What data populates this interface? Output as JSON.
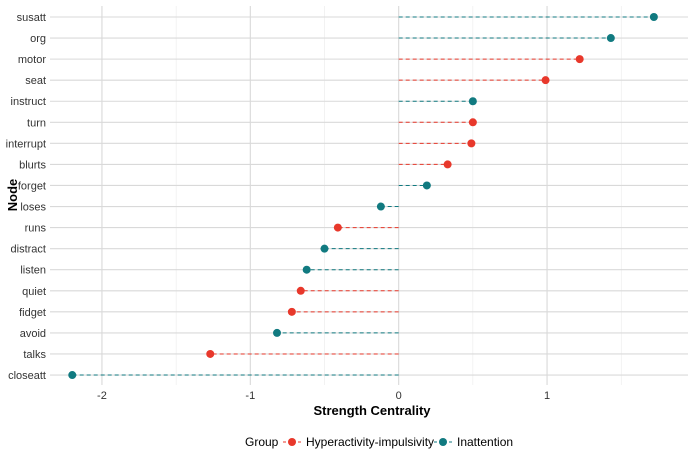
{
  "chart_data": {
    "type": "lollipop",
    "xlabel": "Strength Centrality",
    "ylabel": "Node",
    "xlim": [
      -2.35,
      1.95
    ],
    "x_ticks": [
      -2,
      -1,
      0,
      1
    ],
    "x_tick_labels": [
      "-2",
      "-1",
      "0",
      "1"
    ],
    "baseline": 0,
    "legend": {
      "title": "Group",
      "position": "bottom",
      "entries": [
        {
          "name": "Hyperactivity-impulsivity",
          "color": "#E8382B"
        },
        {
          "name": "Inattention",
          "color": "#117A80"
        }
      ]
    },
    "points": [
      {
        "node": "susatt",
        "value": 1.72,
        "group": "Inattention"
      },
      {
        "node": "org",
        "value": 1.43,
        "group": "Inattention"
      },
      {
        "node": "motor",
        "value": 1.22,
        "group": "Hyperactivity-impulsivity"
      },
      {
        "node": "seat",
        "value": 0.99,
        "group": "Hyperactivity-impulsivity"
      },
      {
        "node": "instruct",
        "value": 0.5,
        "group": "Inattention"
      },
      {
        "node": "turn",
        "value": 0.5,
        "group": "Hyperactivity-impulsivity"
      },
      {
        "node": "interrupt",
        "value": 0.49,
        "group": "Hyperactivity-impulsivity"
      },
      {
        "node": "blurts",
        "value": 0.33,
        "group": "Hyperactivity-impulsivity"
      },
      {
        "node": "forget",
        "value": 0.19,
        "group": "Inattention"
      },
      {
        "node": "loses",
        "value": -0.12,
        "group": "Inattention"
      },
      {
        "node": "runs",
        "value": -0.41,
        "group": "Hyperactivity-impulsivity"
      },
      {
        "node": "distract",
        "value": -0.5,
        "group": "Inattention"
      },
      {
        "node": "listen",
        "value": -0.62,
        "group": "Inattention"
      },
      {
        "node": "quiet",
        "value": -0.66,
        "group": "Hyperactivity-impulsivity"
      },
      {
        "node": "fidget",
        "value": -0.72,
        "group": "Hyperactivity-impulsivity"
      },
      {
        "node": "avoid",
        "value": -0.82,
        "group": "Inattention"
      },
      {
        "node": "talks",
        "value": -1.27,
        "group": "Hyperactivity-impulsivity"
      },
      {
        "node": "closeatt",
        "value": -2.2,
        "group": "Inattention"
      }
    ]
  }
}
